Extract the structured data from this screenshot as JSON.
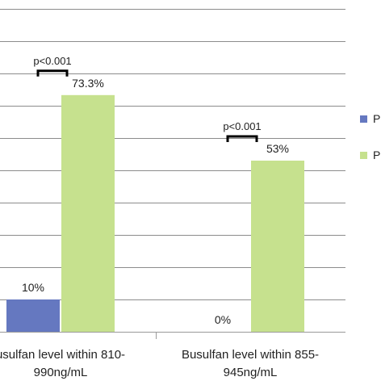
{
  "chart_data": {
    "type": "bar",
    "categories": [
      [
        "usulfan level within 810-",
        "990ng/mL"
      ],
      [
        "Busulfan level within 855-",
        "945ng/mL"
      ]
    ],
    "series": [
      {
        "name": "P",
        "color": "#6578c0",
        "values": [
          10,
          0
        ],
        "labels": [
          "10%",
          "0%"
        ]
      },
      {
        "name": "P",
        "color": "#c6e18e",
        "values": [
          73.3,
          53
        ],
        "labels": [
          "73.3%",
          "53%"
        ]
      }
    ],
    "annotations": [
      {
        "category_index": 0,
        "text": "p<0.001"
      },
      {
        "category_index": 1,
        "text": "p<0.001"
      }
    ],
    "ylim": [
      0,
      100
    ],
    "grid": true,
    "legend_position": "right"
  }
}
